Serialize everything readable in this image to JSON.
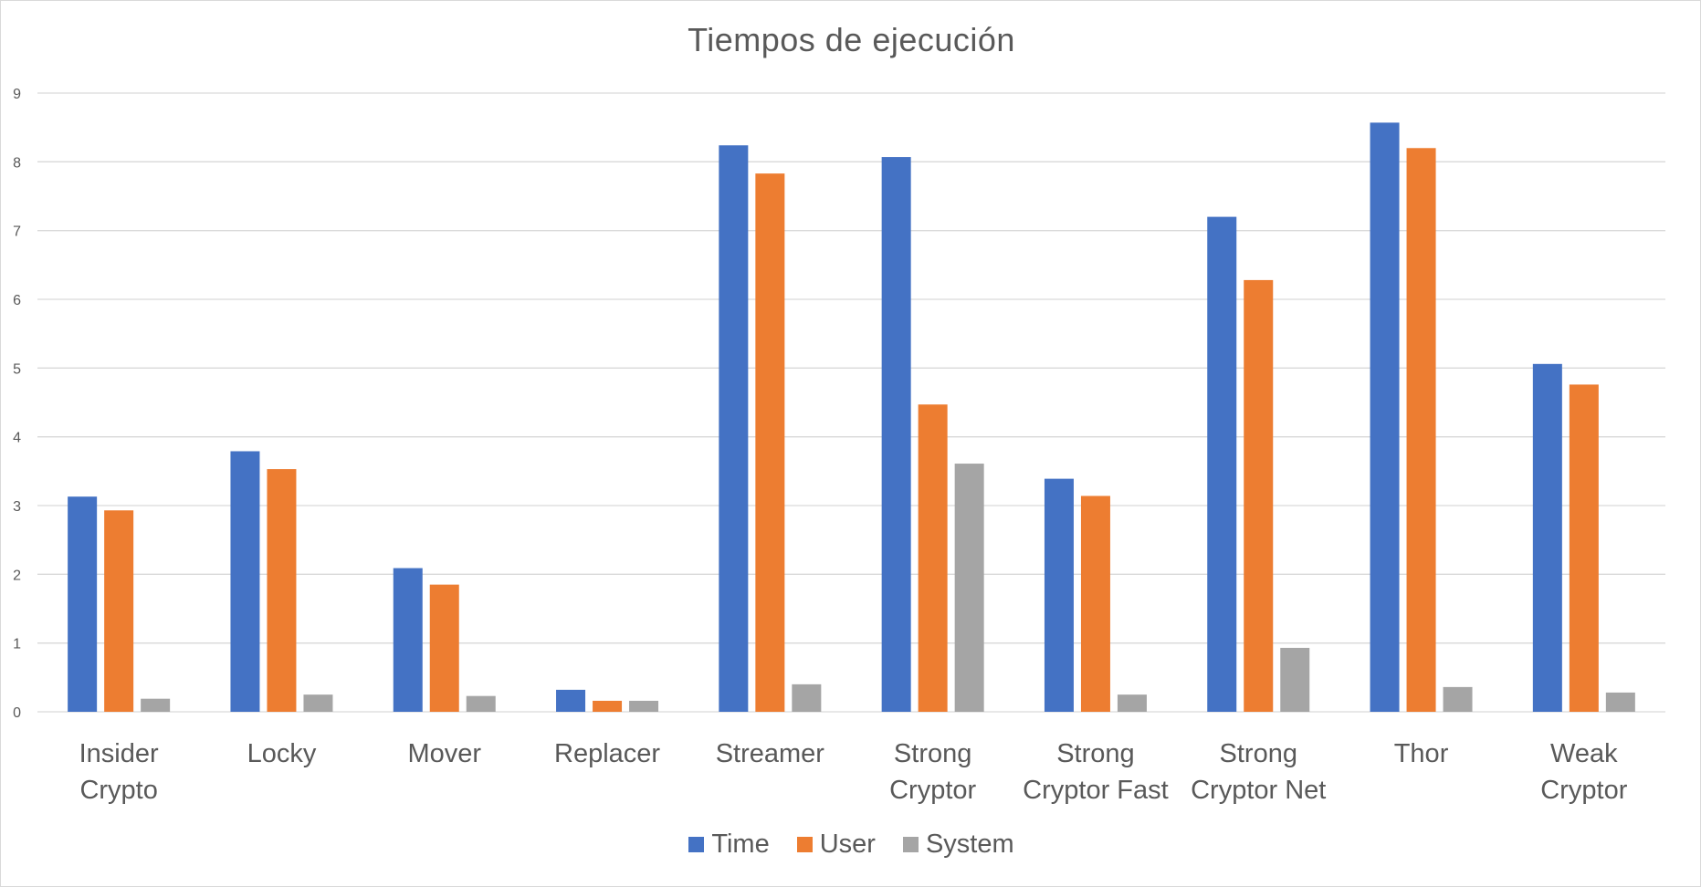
{
  "chart_data": {
    "type": "bar",
    "title": "Tiempos de ejecución",
    "xlabel": "",
    "ylabel": "",
    "ylim": [
      0,
      9
    ],
    "yticks": [
      "0",
      "1",
      "2",
      "3",
      "4",
      "5",
      "6",
      "7",
      "8",
      "9"
    ],
    "grid": true,
    "legend_position": "bottom",
    "categories": [
      [
        "Insider",
        "Crypto"
      ],
      [
        "Locky"
      ],
      [
        "Mover"
      ],
      [
        "Replacer"
      ],
      [
        "Streamer"
      ],
      [
        "Strong",
        "Cryptor"
      ],
      [
        "Strong",
        "Cryptor Fast"
      ],
      [
        "Strong",
        "Cryptor Net"
      ],
      [
        "Thor"
      ],
      [
        "Weak",
        "Cryptor"
      ]
    ],
    "series": [
      {
        "name": "Time",
        "color": "#4472c4",
        "values": [
          3.13,
          3.79,
          2.09,
          0.32,
          8.24,
          8.07,
          3.39,
          7.2,
          8.57,
          5.06
        ]
      },
      {
        "name": "User",
        "color": "#ed7d31",
        "values": [
          2.93,
          3.53,
          1.85,
          0.16,
          7.83,
          4.47,
          3.14,
          6.28,
          8.2,
          4.76
        ]
      },
      {
        "name": "System",
        "color": "#a5a5a5",
        "values": [
          0.19,
          0.25,
          0.23,
          0.16,
          0.4,
          3.61,
          0.25,
          0.93,
          0.36,
          0.28
        ]
      }
    ]
  }
}
